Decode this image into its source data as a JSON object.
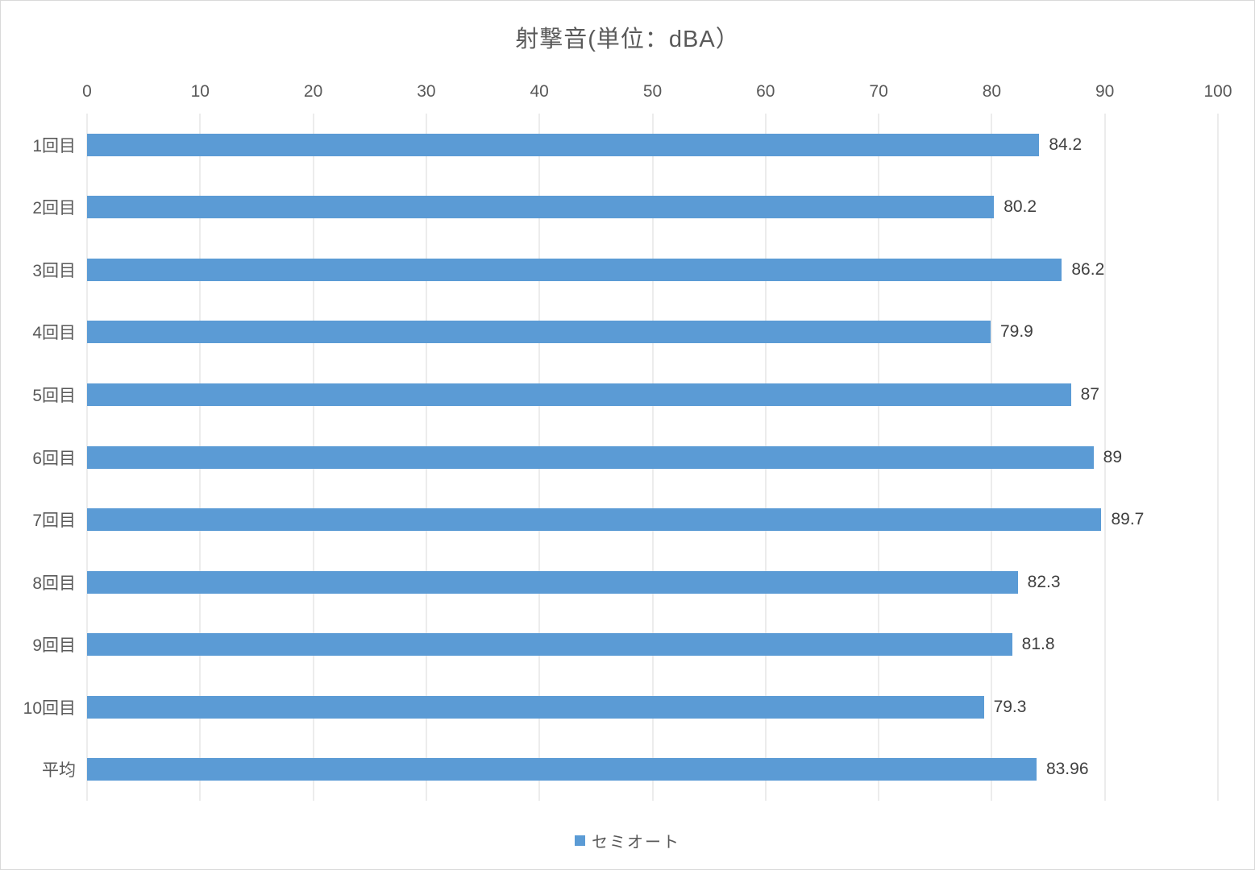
{
  "chart_data": {
    "type": "bar",
    "orientation": "horizontal",
    "title": "射撃音(単位：dBA）",
    "categories": [
      "1回目",
      "2回目",
      "3回目",
      "4回目",
      "5回目",
      "6回目",
      "7回目",
      "8回目",
      "9回目",
      "10回目",
      "平均"
    ],
    "series": [
      {
        "name": "セミオート",
        "values": [
          84.2,
          80.2,
          86.2,
          79.9,
          87,
          89,
          89.7,
          82.3,
          81.8,
          79.3,
          83.96
        ],
        "display_values": [
          "84.2",
          "80.2",
          "86.2",
          "79.9",
          "87",
          "89",
          "89.7",
          "82.3",
          "81.8",
          "79.3",
          "83.96"
        ]
      }
    ],
    "xlabel": "",
    "ylabel": "",
    "xlim": [
      0,
      100
    ],
    "x_ticks": [
      0,
      10,
      20,
      30,
      40,
      50,
      60,
      70,
      80,
      90,
      100
    ],
    "grid": true,
    "legend_position": "bottom",
    "colors": {
      "bar": "#5b9bd5",
      "gridline": "#d9d9d9",
      "title_text": "#595959",
      "tick_text": "#595959",
      "category_text": "#595959",
      "data_label_text": "#404040",
      "legend_text": "#595959",
      "chart_border": "#d9d9d9",
      "background": "#ffffff"
    }
  },
  "legend": {
    "items": [
      {
        "label": "セミオート",
        "color": "#5b9bd5"
      }
    ]
  }
}
